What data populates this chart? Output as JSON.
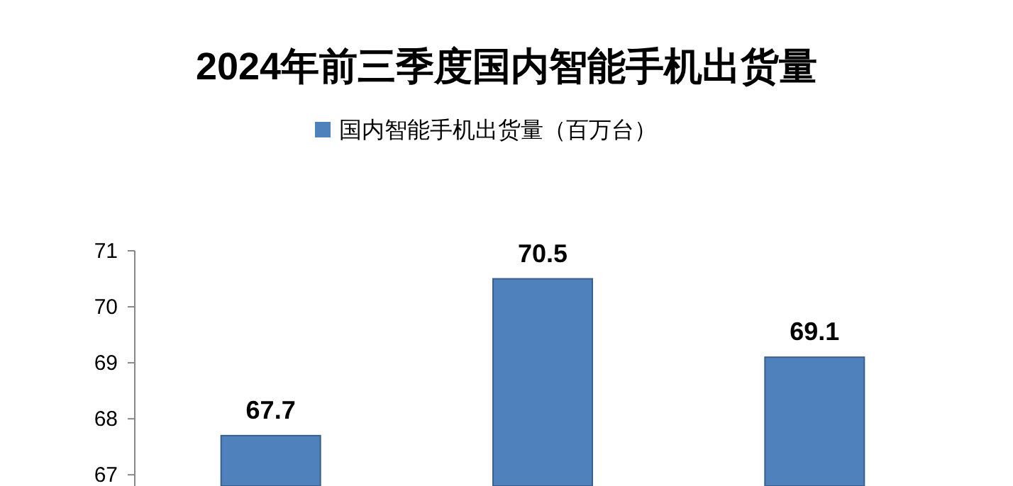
{
  "chart_data": {
    "type": "bar",
    "title": "2024年前三季度国内智能手机出货量",
    "categories": [
      null,
      null,
      null
    ],
    "series": [
      {
        "name": "国内智能手机出货量（百万台）",
        "color": "#4f81bd",
        "values": [
          67.7,
          70.5,
          69.1
        ]
      }
    ],
    "ylim": [
      66.8,
      71
    ],
    "yticks": [
      67,
      68,
      69,
      70,
      71
    ],
    "data_labels": true,
    "legend": "top",
    "grid": false
  }
}
